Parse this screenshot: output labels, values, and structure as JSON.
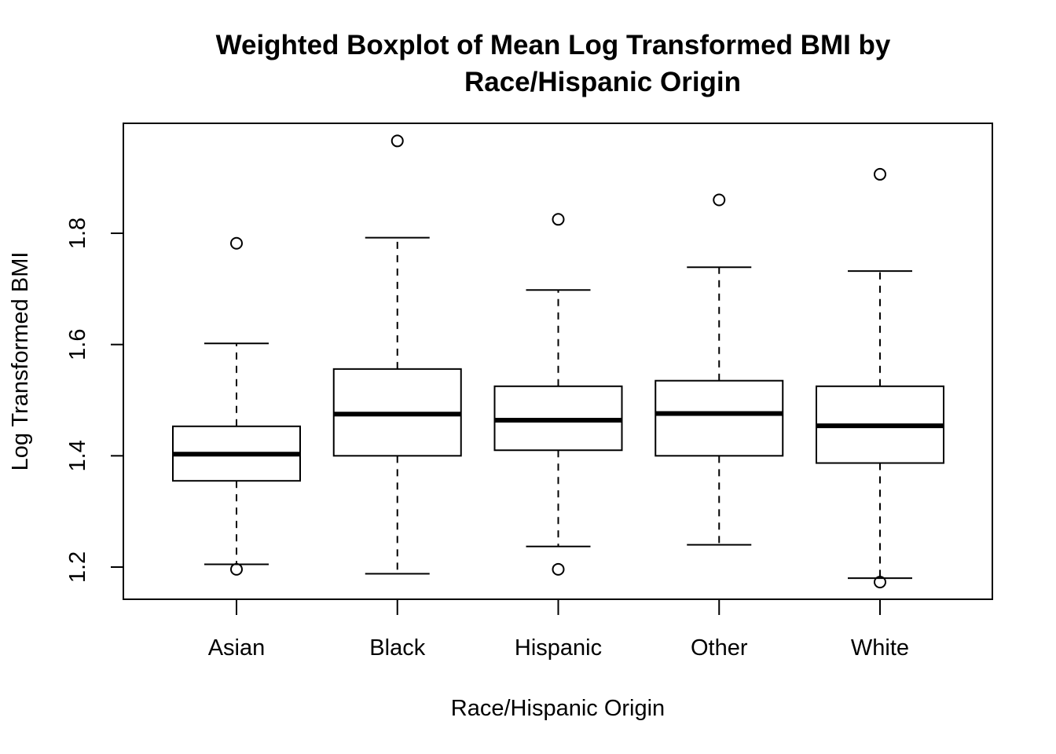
{
  "chart_data": {
    "type": "boxplot",
    "title_lines": [
      "Weighted Boxplot of Mean Log Transformed BMI by",
      "Race/Hispanic Origin"
    ],
    "xlabel": "Race/Hispanic Origin",
    "ylabel": "Log Transformed BMI",
    "ylim": [
      1.14,
      1.99
    ],
    "y_ticks": [
      1.2,
      1.4,
      1.6,
      1.8
    ],
    "y_tick_labels": [
      "1.2",
      "1.4",
      "1.6",
      "1.8"
    ],
    "grid": false,
    "categories": [
      "Asian",
      "Black",
      "Hispanic",
      "Other",
      "White"
    ],
    "boxes": [
      {
        "category": "Asian",
        "whisker_low": 1.205,
        "q1": 1.355,
        "median": 1.403,
        "q3": 1.453,
        "whisker_high": 1.602,
        "outliers": [
          1.782,
          1.196
        ]
      },
      {
        "category": "Black",
        "whisker_low": 1.188,
        "q1": 1.4,
        "median": 1.475,
        "q3": 1.556,
        "whisker_high": 1.792,
        "outliers": [
          1.966
        ]
      },
      {
        "category": "Hispanic",
        "whisker_low": 1.237,
        "q1": 1.41,
        "median": 1.464,
        "q3": 1.525,
        "whisker_high": 1.698,
        "outliers": [
          1.825,
          1.196
        ]
      },
      {
        "category": "Other",
        "whisker_low": 1.24,
        "q1": 1.4,
        "median": 1.476,
        "q3": 1.535,
        "whisker_high": 1.739,
        "outliers": [
          1.86
        ]
      },
      {
        "category": "White",
        "whisker_low": 1.18,
        "q1": 1.387,
        "median": 1.454,
        "q3": 1.525,
        "whisker_high": 1.732,
        "outliers": [
          1.906,
          1.173
        ]
      }
    ]
  }
}
